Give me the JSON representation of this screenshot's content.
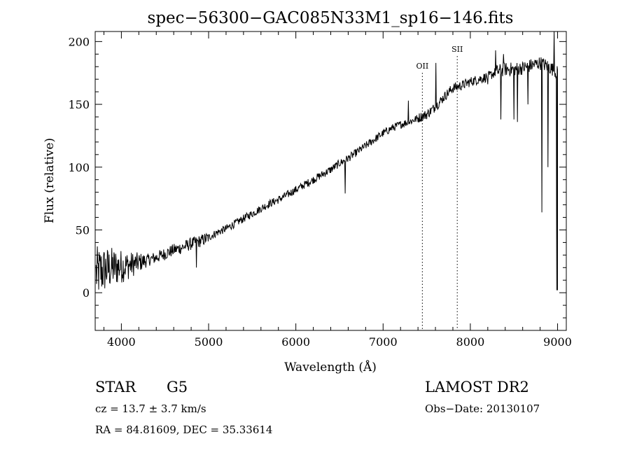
{
  "chart_data": {
    "type": "line",
    "title": "spec−56300−GAC085N33M1_sp16−146.fits",
    "xlabel": "Wavelength (Å)",
    "ylabel": "Flux (relative)",
    "xlim": [
      3700,
      9100
    ],
    "ylim": [
      -30,
      208
    ],
    "xticks": [
      4000,
      5000,
      6000,
      7000,
      8000,
      9000
    ],
    "yticks": [
      0,
      50,
      100,
      150,
      200
    ],
    "grid": false,
    "line_color": "#000000",
    "series": [
      {
        "x": [
          3700,
          3800,
          3900,
          4000,
          4100,
          4200,
          4300,
          4400,
          4500,
          4600,
          4700,
          4800,
          4900,
          5000,
          5100,
          5200,
          5300,
          5400,
          5500,
          5600,
          5700,
          5800,
          5900,
          6000,
          6100,
          6200,
          6300,
          6400,
          6500,
          6600,
          6700,
          6800,
          6900,
          7000,
          7100,
          7200,
          7300,
          7400,
          7500,
          7600,
          7700,
          7800,
          7900,
          8000,
          8100,
          8200,
          8300,
          8400,
          8500,
          8600,
          8700,
          8800,
          8900,
          9000
        ],
        "y": [
          15,
          18,
          20,
          21,
          22,
          24,
          26,
          28,
          31,
          34,
          36,
          39,
          41,
          44,
          48,
          51,
          55,
          59,
          63,
          67,
          71,
          74,
          78,
          82,
          86,
          90,
          94,
          98,
          103,
          107,
          112,
          117,
          122,
          127,
          131,
          134,
          136,
          139,
          142,
          148,
          156,
          163,
          165,
          168,
          170,
          172,
          176,
          178,
          178,
          179,
          181,
          183,
          180,
          175
        ]
      }
    ],
    "absorption_features": [
      {
        "x": 4861,
        "y": 20
      },
      {
        "x": 6563,
        "y": 79
      },
      {
        "x": 7600,
        "y": 150
      },
      {
        "x": 8200,
        "y": 166
      },
      {
        "x": 8350,
        "y": 138
      },
      {
        "x": 8500,
        "y": 138
      },
      {
        "x": 8542,
        "y": 136
      },
      {
        "x": 8662,
        "y": 150
      },
      {
        "x": 8820,
        "y": 64
      },
      {
        "x": 8890,
        "y": 100
      },
      {
        "x": 8990,
        "y": 2
      }
    ],
    "emission_features": [
      {
        "x": 7290,
        "y": 153
      },
      {
        "x": 7605,
        "y": 183
      },
      {
        "x": 8290,
        "y": 193
      },
      {
        "x": 8380,
        "y": 190
      },
      {
        "x": 8960,
        "y": 208
      }
    ],
    "lines": [
      {
        "label": "OII",
        "x": 7450
      },
      {
        "label": "SII",
        "x": 7850
      }
    ]
  },
  "info": {
    "object_class": "STAR",
    "subclass": "G5",
    "survey": "LAMOST DR2",
    "cz": "cz = 13.7 ± 3.7 km/s",
    "obs_date": "Obs−Date: 20130107",
    "coords": "RA =  84.81609, DEC =  35.33614"
  }
}
